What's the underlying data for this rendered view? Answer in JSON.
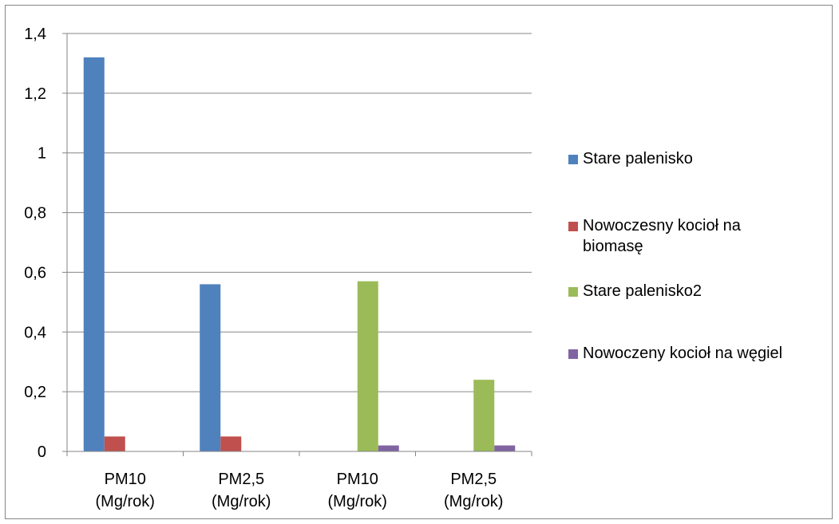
{
  "chart_data": {
    "type": "bar",
    "categories": [
      "PM10 (Mg/rok)",
      "PM2,5 (Mg/rok)",
      "PM10 (Mg/rok)",
      "PM2,5 (Mg/rok)"
    ],
    "category_lines": [
      [
        "PM10",
        "(Mg/rok)"
      ],
      [
        "PM2,5",
        "(Mg/rok)"
      ],
      [
        "PM10",
        "(Mg/rok)"
      ],
      [
        "PM2,5",
        "(Mg/rok)"
      ]
    ],
    "series": [
      {
        "name": "Stare palenisko",
        "color": "#4F81BD",
        "values": [
          1.32,
          0.56,
          0,
          0
        ]
      },
      {
        "name": "Nowoczesny kocioł na biomasę",
        "color": "#C0504D",
        "values": [
          0.05,
          0.05,
          0,
          0
        ]
      },
      {
        "name": "Stare palenisko2",
        "color": "#9BBB59",
        "values": [
          0,
          0,
          0.57,
          0.24
        ]
      },
      {
        "name": "Nowoczeny kocioł na węgiel",
        "color": "#8064A2",
        "values": [
          0,
          0,
          0.02,
          0.02
        ]
      }
    ],
    "ylim": [
      0,
      1.4
    ],
    "yticks": [
      "0",
      "0,2",
      "0,4",
      "0,6",
      "0,8",
      "1",
      "1,2",
      "1,4"
    ],
    "ytick_values": [
      0,
      0.2,
      0.4,
      0.6,
      0.8,
      1.0,
      1.2,
      1.4
    ],
    "grid": true,
    "legend_position": "right",
    "xlabel": "",
    "ylabel": "",
    "title": ""
  }
}
